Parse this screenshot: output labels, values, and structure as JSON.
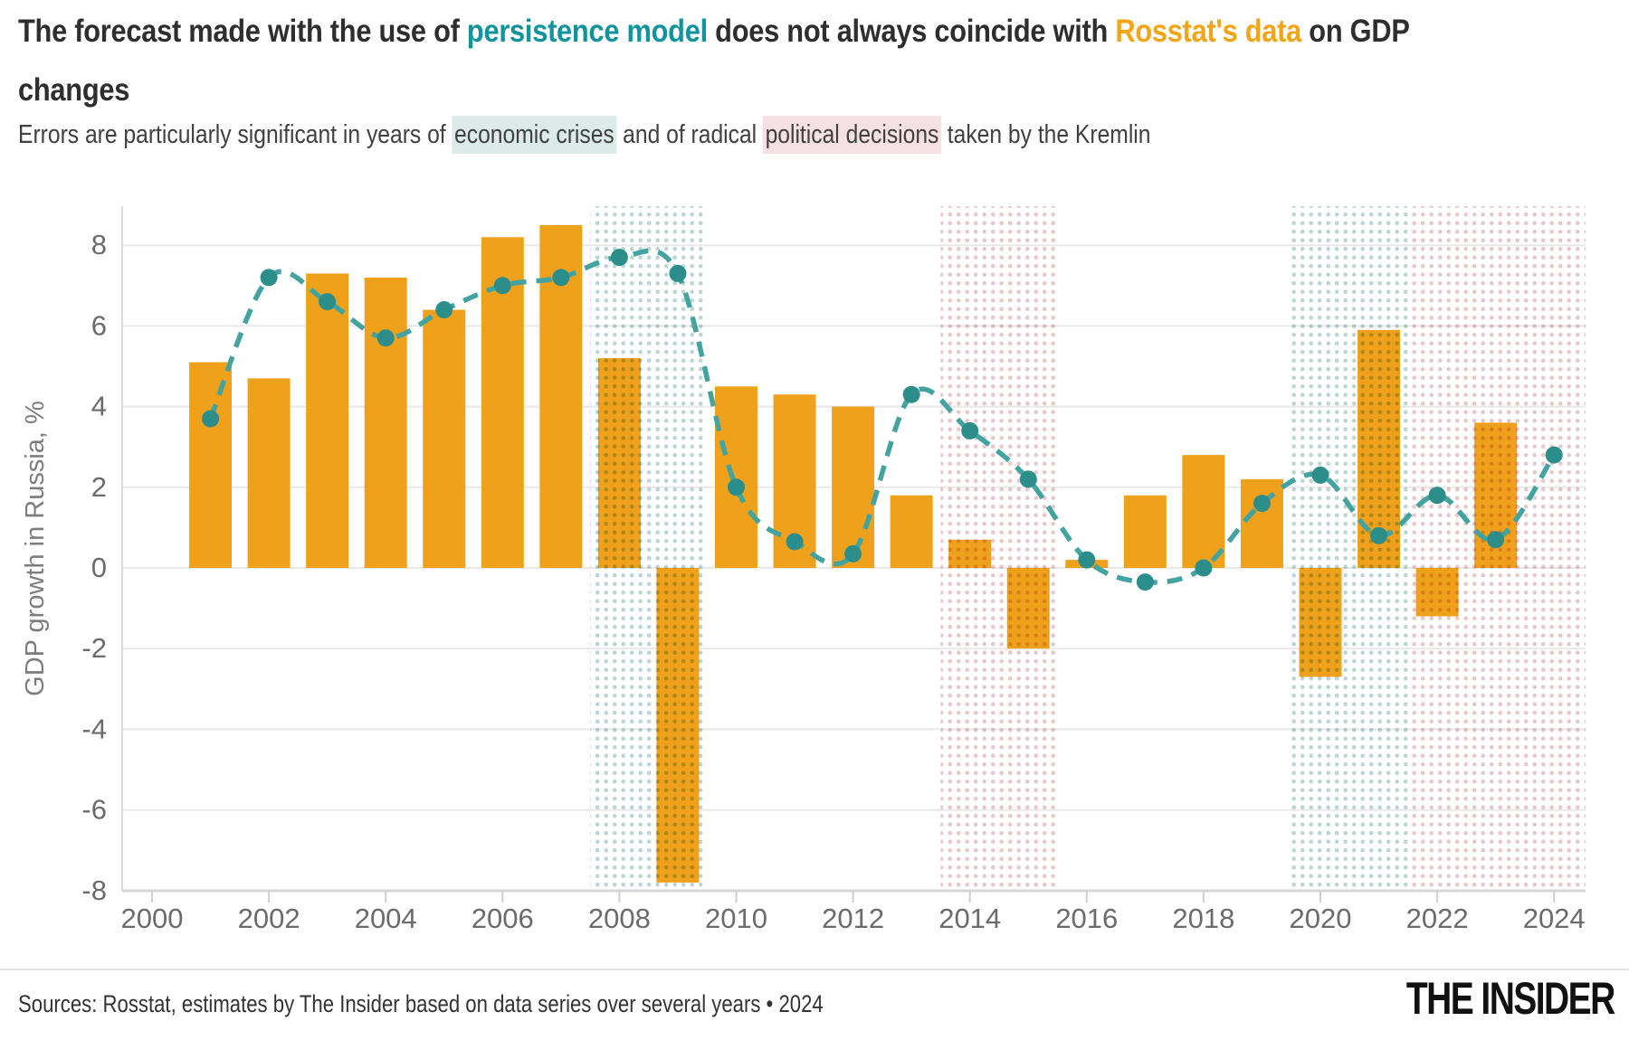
{
  "header": {
    "title_segments": [
      {
        "text": "The forecast made with the use of "
      },
      {
        "text": "persistence model"
      },
      {
        "text": " does not always coincide with "
      },
      {
        "text": "Rosstat's data"
      },
      {
        "text": " on GDP"
      }
    ],
    "title_line2": "changes",
    "subtitle_segments": [
      {
        "text": "Errors are particularly significant in years of "
      },
      {
        "text": "economic crises"
      },
      {
        "text": " and of radical "
      },
      {
        "text": "political decisions"
      },
      {
        "text": " taken by the Kremlin"
      }
    ]
  },
  "footer": {
    "sources": "Sources: Rosstat, estimates by The Insider based on data series over several years • 2024",
    "logo": "THE INSIDER"
  },
  "colors": {
    "bar_orange": "#F0A11B",
    "line_teal": "#43A3A0",
    "point_teal": "#2B8E8B",
    "crisis_dots": "#BCD6D4",
    "political_dots": "#E8C8CC",
    "grid": "#E8E8E8",
    "axis_line": "#DCDCDC",
    "axis_bottom": "#D6D6D6",
    "tick": "#CFCFCF",
    "title_teal": "#12939E",
    "title_orange": "#F3A517"
  },
  "chart_data": {
    "type": "bar",
    "title": "The forecast made with the use of persistence model does not always coincide with Rosstat's data on GDP changes",
    "subtitle": "Errors are particularly significant in years of economic crises and of radical political decisions taken by the Kremlin",
    "xlabel": "",
    "ylabel": "GDP growth in Russia, %",
    "ylim": [
      -8.5,
      9
    ],
    "grid": "horizontal",
    "legend_position": "none",
    "y_ticks": [
      8,
      6,
      4,
      2,
      0,
      -2,
      -4,
      -6,
      -8
    ],
    "x_ticks": [
      2000,
      2002,
      2004,
      2006,
      2008,
      2010,
      2012,
      2014,
      2016,
      2018,
      2020,
      2022,
      2024
    ],
    "series": [
      {
        "name": "Rosstat's data (GDP growth, %)",
        "type": "bar",
        "x": [
          2001,
          2002,
          2003,
          2004,
          2005,
          2006,
          2007,
          2008,
          2009,
          2010,
          2011,
          2012,
          2013,
          2014,
          2015,
          2016,
          2017,
          2018,
          2019,
          2020,
          2021,
          2022,
          2023
        ],
        "values": [
          5.1,
          4.7,
          7.3,
          7.2,
          6.4,
          8.2,
          8.5,
          5.2,
          -7.8,
          4.5,
          4.3,
          4.0,
          1.8,
          0.7,
          -2.0,
          0.2,
          1.8,
          2.8,
          2.2,
          -2.7,
          5.9,
          -1.2,
          3.6
        ]
      },
      {
        "name": "Persistence model forecast",
        "type": "line",
        "x": [
          2001,
          2002,
          2003,
          2004,
          2005,
          2006,
          2007,
          2008,
          2009,
          2010,
          2011,
          2012,
          2013,
          2014,
          2015,
          2016,
          2017,
          2018,
          2019,
          2020,
          2021,
          2022,
          2023,
          2024
        ],
        "values": [
          3.7,
          7.2,
          6.6,
          5.7,
          6.4,
          7.0,
          7.2,
          7.7,
          7.3,
          2.0,
          0.65,
          0.35,
          4.3,
          3.4,
          2.2,
          0.2,
          -0.35,
          0.0,
          1.6,
          2.3,
          0.8,
          1.8,
          0.7,
          2.8
        ]
      }
    ],
    "highlight_regions": [
      {
        "label": "economic crisis",
        "from": 2007.5,
        "to": 2009.5
      },
      {
        "label": "political decisions",
        "from": 2013.5,
        "to": 2015.5
      },
      {
        "label": "economic crisis",
        "from": 2019.5,
        "to": 2021.5
      },
      {
        "label": "political decisions",
        "from": 2021.5,
        "to": 2024.55
      }
    ]
  }
}
